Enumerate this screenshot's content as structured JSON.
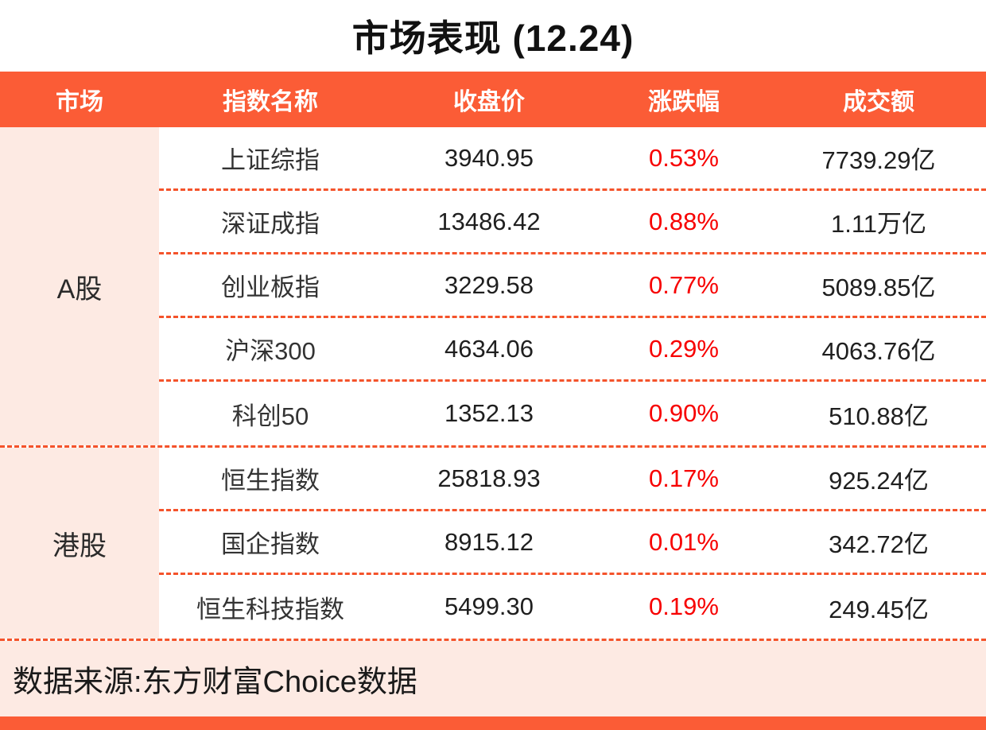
{
  "title": "市场表现 (12.24)",
  "colors": {
    "header_bg": "#fb5c36",
    "group_bg": "#fdeae3",
    "footer_bg": "#fdeae3",
    "divider": "#f4532b",
    "change_text": "#f70000",
    "header_text": "#ffffff",
    "title_text": "#111111"
  },
  "table": {
    "headers": [
      "市场",
      "指数名称",
      "收盘价",
      "涨跌幅",
      "成交额"
    ],
    "sections": [
      {
        "market": "A股",
        "rows": [
          {
            "name": "上证综指",
            "close": "3940.95",
            "change": "0.53%",
            "turnover": "7739.29亿"
          },
          {
            "name": "深证成指",
            "close": "13486.42",
            "change": "0.88%",
            "turnover": "1.11万亿"
          },
          {
            "name": "创业板指",
            "close": "3229.58",
            "change": "0.77%",
            "turnover": "5089.85亿"
          },
          {
            "name": "沪深300",
            "close": "4634.06",
            "change": "0.29%",
            "turnover": "4063.76亿"
          },
          {
            "name": "科创50",
            "close": "1352.13",
            "change": "0.90%",
            "turnover": "510.88亿"
          }
        ]
      },
      {
        "market": "港股",
        "rows": [
          {
            "name": "恒生指数",
            "close": "25818.93",
            "change": "0.17%",
            "turnover": "925.24亿"
          },
          {
            "name": "国企指数",
            "close": "8915.12",
            "change": "0.01%",
            "turnover": "342.72亿"
          },
          {
            "name": "恒生科技指数",
            "close": "5499.30",
            "change": "0.19%",
            "turnover": "249.45亿"
          }
        ]
      }
    ]
  },
  "footer": {
    "source": "数据来源:东方财富Choice数据"
  },
  "chart_data": {
    "type": "table",
    "title": "市场表现 (12.24)",
    "columns": [
      "市场",
      "指数名称",
      "收盘价",
      "涨跌幅",
      "成交额"
    ],
    "rows": [
      [
        "A股",
        "上证综指",
        3940.95,
        "0.53%",
        "7739.29亿"
      ],
      [
        "A股",
        "深证成指",
        13486.42,
        "0.88%",
        "1.11万亿"
      ],
      [
        "A股",
        "创业板指",
        3229.58,
        "0.77%",
        "5089.85亿"
      ],
      [
        "A股",
        "沪深300",
        4634.06,
        "0.29%",
        "4063.76亿"
      ],
      [
        "A股",
        "科创50",
        1352.13,
        "0.90%",
        "510.88亿"
      ],
      [
        "港股",
        "恒生指数",
        25818.93,
        "0.17%",
        "925.24亿"
      ],
      [
        "港股",
        "国企指数",
        8915.12,
        "0.01%",
        "342.72亿"
      ],
      [
        "港股",
        "恒生科技指数",
        5499.3,
        "0.19%",
        "249.45亿"
      ]
    ],
    "notes": "涨跌幅 values rendered in red; source note: 数据来源:东方财富Choice数据"
  }
}
